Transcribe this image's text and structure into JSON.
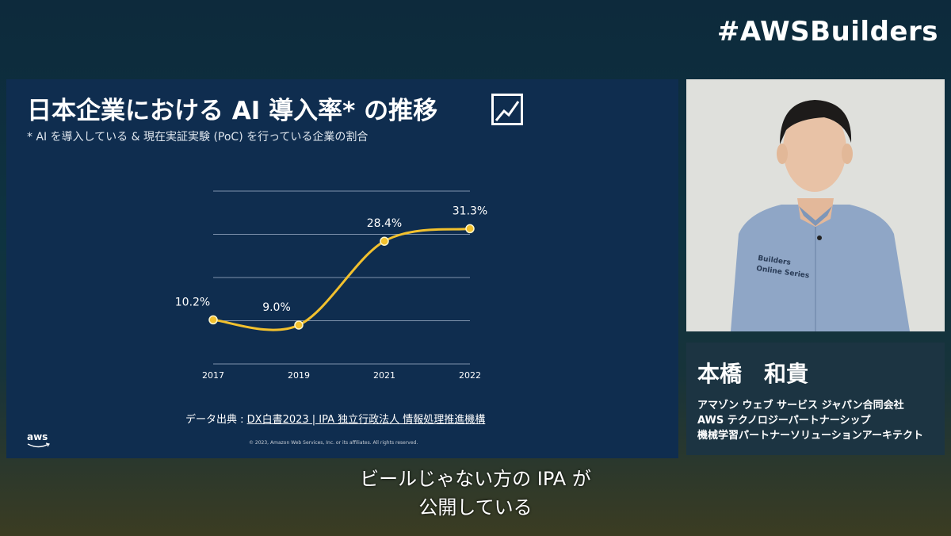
{
  "hashtag": "#AWSBuilders",
  "slide": {
    "title": "日本企業における AI 導入率* の推移",
    "title_icon": "trend-chart-icon",
    "subtitle": "* AI を導入している & 現在実証実験 (PoC) を行っている企業の割合",
    "source_prefix": "データ出典 : ",
    "source_link": "DX白書2023 | IPA 独立行政法人 情報処理推進機構",
    "copyright": "© 2023, Amazon Web Services, Inc. or its affiliates. All rights reserved.",
    "logo": "aws"
  },
  "chart_data": {
    "type": "line",
    "categories": [
      "2017",
      "2019",
      "2021",
      "2022"
    ],
    "series": [
      {
        "values": [
          10.2,
          9.0,
          28.4,
          31.3
        ],
        "labels": [
          "10.2%",
          "9.0%",
          "28.4%",
          "31.3%"
        ]
      }
    ],
    "title": "",
    "xlabel": "",
    "ylabel": "",
    "ylim": [
      0,
      40
    ],
    "grid": true,
    "line_color": "#f2c12e"
  },
  "speaker": {
    "name": "本橋　和貴",
    "company": "アマゾン ウェブ サービス ジャパン合同会社",
    "team": "AWS テクノロジーパートナーシップ",
    "role": "機械学習パートナーソリューションアーキテクト",
    "shirt_text_1": "Builders",
    "shirt_text_2": "Online Series"
  },
  "caption": {
    "line1": "ビールじゃない方の IPA が",
    "line2": "公開している"
  }
}
